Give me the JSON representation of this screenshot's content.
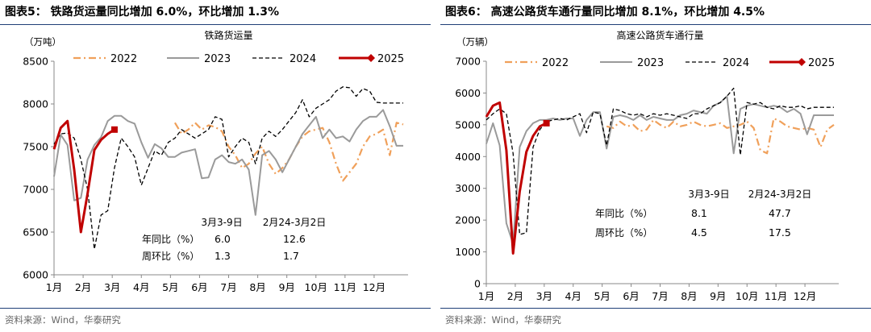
{
  "left": {
    "title": "图表5：  铁路货运量同比增加 6.0%，环比增加 1.3%",
    "source": "资料来源：Wind，华泰研究",
    "chart_data": {
      "type": "line",
      "title": "铁路货运量",
      "unit_label": "（万吨）",
      "ylim": [
        6000,
        8500
      ],
      "y_ticks": [
        "6000",
        "6500",
        "7000",
        "7500",
        "8000",
        "8500"
      ],
      "x_ticks": [
        "1月",
        "2月",
        "3月",
        "4月",
        "5月",
        "6月",
        "7月",
        "8月",
        "9月",
        "10月",
        "11月",
        "12月"
      ],
      "x_range_weeks": [
        1,
        53
      ],
      "colors": {
        "2022": "#f0a05a",
        "2023": "#9a9a9a",
        "2024": "#000000",
        "2025": "#c00000"
      },
      "series": [
        {
          "name": "2022",
          "style": "dashdot",
          "weeks": [
            19,
            20,
            21,
            22,
            23,
            24,
            25,
            26,
            27,
            28,
            29,
            30,
            31,
            32,
            33,
            34,
            35,
            36,
            37,
            38,
            39,
            40,
            41,
            42,
            43,
            44,
            45,
            46,
            47,
            48,
            49,
            50,
            51,
            52,
            53
          ],
          "values": [
            7780,
            7650,
            7700,
            7780,
            7700,
            7750,
            7730,
            7680,
            7500,
            7400,
            7250,
            7300,
            7420,
            7500,
            7300,
            7180,
            7250,
            7350,
            7500,
            7620,
            7680,
            7700,
            7720,
            7550,
            7300,
            7100,
            7200,
            7300,
            7500,
            7620,
            7650,
            7700,
            7400,
            7780,
            7760
          ]
        },
        {
          "name": "2023",
          "style": "solid",
          "weeks": [
            1,
            2,
            3,
            4,
            5,
            6,
            7,
            8,
            9,
            10,
            11,
            12,
            13,
            14,
            15,
            16,
            17,
            18,
            19,
            20,
            21,
            22,
            23,
            24,
            25,
            26,
            27,
            28,
            29,
            30,
            31,
            32,
            33,
            34,
            35,
            36,
            37,
            38,
            39,
            40,
            41,
            42,
            43,
            44,
            45,
            46,
            47,
            48,
            49,
            50,
            51,
            52,
            53
          ],
          "values": [
            7150,
            7640,
            7520,
            6870,
            6900,
            7350,
            7520,
            7610,
            7800,
            7860,
            7860,
            7800,
            7770,
            7550,
            7370,
            7530,
            7480,
            7380,
            7380,
            7430,
            7450,
            7470,
            7130,
            7140,
            7350,
            7400,
            7320,
            7300,
            7350,
            7230,
            6700,
            7400,
            7450,
            7350,
            7200,
            7350,
            7500,
            7650,
            7750,
            7850,
            7600,
            7700,
            7600,
            7620,
            7560,
            7700,
            7800,
            7850,
            7850,
            7930,
            7740,
            7510,
            7510
          ]
        },
        {
          "name": "2024",
          "style": "dashed",
          "weeks": [
            1,
            2,
            3,
            4,
            5,
            6,
            7,
            8,
            9,
            10,
            11,
            12,
            13,
            14,
            15,
            16,
            17,
            18,
            19,
            20,
            21,
            22,
            23,
            24,
            25,
            26,
            27,
            28,
            29,
            30,
            31,
            32,
            33,
            34,
            35,
            36,
            37,
            38,
            39,
            40,
            41,
            42,
            43,
            44,
            45,
            46,
            47,
            48,
            49,
            50,
            51,
            52,
            53
          ],
          "values": [
            7530,
            7650,
            7660,
            7600,
            7350,
            7000,
            6300,
            6700,
            6750,
            7250,
            7600,
            7500,
            7380,
            7050,
            7250,
            7450,
            7400,
            7550,
            7600,
            7700,
            7650,
            7600,
            7650,
            7700,
            7850,
            7820,
            7380,
            7500,
            7600,
            7550,
            7300,
            7600,
            7680,
            7620,
            7700,
            7800,
            7900,
            8050,
            7850,
            7950,
            8000,
            8050,
            8150,
            8200,
            8190,
            8090,
            8180,
            8150,
            8020,
            8010,
            8010,
            8010,
            8010
          ]
        },
        {
          "name": "2025",
          "style": "solid-marker",
          "weeks": [
            1,
            2,
            3,
            4,
            5,
            6,
            7,
            8,
            9,
            10
          ],
          "values": [
            7470,
            7720,
            7800,
            7230,
            6500,
            6950,
            7460,
            7580,
            7650,
            7700
          ]
        }
      ],
      "table": {
        "col_headers": [
          "3月3-9日",
          "2月24-3月2日"
        ],
        "rows": [
          {
            "label": "年同比（%）",
            "values": [
              "6.0",
              "12.6"
            ]
          },
          {
            "label": "周环比（%）",
            "values": [
              "1.3",
              "1.7"
            ]
          }
        ]
      }
    }
  },
  "right": {
    "title": "图表6：  高速公路货车通行量同比增加 8.1%，环比增加 4.5%",
    "source": "资料来源：Wind，华泰研究",
    "chart_data": {
      "type": "line",
      "title": "高速公路货车通行量",
      "unit_label": "（万辆）",
      "ylim": [
        0,
        7000
      ],
      "y_ticks": [
        "0",
        "1000",
        "2000",
        "3000",
        "4000",
        "5000",
        "6000",
        "7000"
      ],
      "x_ticks": [
        "1月",
        "2月",
        "3月",
        "4月",
        "5月",
        "6月",
        "7月",
        "8月",
        "9月",
        "10月",
        "11月",
        "12月"
      ],
      "x_range_weeks": [
        1,
        53
      ],
      "colors": {
        "2022": "#f0a05a",
        "2023": "#9a9a9a",
        "2024": "#000000",
        "2025": "#c00000"
      },
      "series": [
        {
          "name": "2022",
          "style": "dashdot",
          "weeks": [
            19,
            20,
            21,
            22,
            23,
            24,
            25,
            26,
            27,
            28,
            29,
            30,
            31,
            32,
            33,
            34,
            35,
            36,
            37,
            38,
            39,
            40,
            41,
            42,
            43,
            44,
            45,
            46,
            47,
            48,
            49,
            50,
            51,
            52,
            53
          ],
          "values": [
            4950,
            4900,
            5100,
            4950,
            5000,
            4800,
            4850,
            5150,
            5000,
            4900,
            5100,
            4950,
            5000,
            5100,
            5000,
            4950,
            5000,
            5050,
            4900,
            4950,
            5000,
            5100,
            4900,
            4200,
            4100,
            5200,
            5100,
            4950,
            4900,
            4850,
            4900,
            4850,
            4300,
            4850,
            5000
          ]
        },
        {
          "name": "2023",
          "style": "solid",
          "weeks": [
            1,
            2,
            3,
            4,
            5,
            6,
            7,
            8,
            9,
            10,
            11,
            12,
            13,
            14,
            15,
            16,
            17,
            18,
            19,
            20,
            21,
            22,
            23,
            24,
            25,
            26,
            27,
            28,
            29,
            30,
            31,
            32,
            33,
            34,
            35,
            36,
            37,
            38,
            39,
            40,
            41,
            42,
            43,
            44,
            45,
            46,
            47,
            48,
            49,
            50,
            51,
            52,
            53
          ],
          "values": [
            4400,
            5050,
            4350,
            1900,
            1250,
            4300,
            4800,
            5050,
            5150,
            5150,
            5200,
            5150,
            5200,
            5200,
            4650,
            5150,
            5400,
            5400,
            4250,
            5250,
            5300,
            5250,
            5150,
            5300,
            5150,
            5250,
            5200,
            5150,
            5150,
            5300,
            5350,
            5450,
            5400,
            5350,
            5600,
            5700,
            5900,
            4100,
            5500,
            5600,
            5650,
            5600,
            5550,
            5600,
            5550,
            5400,
            5500,
            5350,
            4700,
            5300,
            5300,
            5300,
            5300
          ]
        },
        {
          "name": "2024",
          "style": "dashed",
          "weeks": [
            1,
            2,
            3,
            4,
            5,
            6,
            7,
            8,
            9,
            10,
            11,
            12,
            13,
            14,
            15,
            16,
            17,
            18,
            19,
            20,
            21,
            22,
            23,
            24,
            25,
            26,
            27,
            28,
            29,
            30,
            31,
            32,
            33,
            34,
            35,
            36,
            37,
            38,
            39,
            40,
            41,
            42,
            43,
            44,
            45,
            46,
            47,
            48,
            49,
            50,
            51,
            52,
            53
          ],
          "values": [
            5150,
            5350,
            5500,
            5350,
            4100,
            1550,
            1600,
            4300,
            4850,
            5100,
            5150,
            5200,
            5150,
            5250,
            5350,
            4750,
            5400,
            5350,
            4350,
            5500,
            5450,
            5350,
            5300,
            5350,
            5250,
            5350,
            5300,
            5350,
            5300,
            5250,
            5200,
            5350,
            5350,
            5500,
            5600,
            5700,
            5900,
            6150,
            4050,
            5700,
            5650,
            5700,
            5550,
            5500,
            5600,
            5550,
            5550,
            5600,
            5500,
            5550,
            5550,
            5550,
            5550
          ]
        },
        {
          "name": "2025",
          "style": "solid-marker",
          "weeks": [
            1,
            2,
            3,
            4,
            5,
            6,
            7,
            8,
            9,
            10
          ],
          "values": [
            5250,
            5600,
            5700,
            4200,
            950,
            2900,
            4150,
            4650,
            4950,
            5050
          ]
        }
      ],
      "table": {
        "col_headers": [
          "3月3-9日",
          "2月24-3月2日"
        ],
        "rows": [
          {
            "label": "年同比（%）",
            "values": [
              "8.1",
              "47.7"
            ]
          },
          {
            "label": "周环比（%）",
            "values": [
              "4.5",
              "17.5"
            ]
          }
        ]
      }
    }
  }
}
